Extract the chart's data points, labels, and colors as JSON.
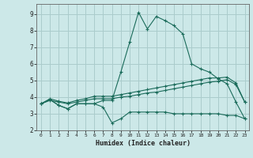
{
  "bg_color": "#cce8e8",
  "grid_color": "#aacccc",
  "line_color": "#1a6b5a",
  "xlabel": "Humidex (Indice chaleur)",
  "xlim": [
    -0.5,
    23.5
  ],
  "ylim": [
    2.0,
    9.6
  ],
  "xticks": [
    0,
    1,
    2,
    3,
    4,
    5,
    6,
    7,
    8,
    9,
    10,
    11,
    12,
    13,
    14,
    15,
    16,
    17,
    18,
    19,
    20,
    21,
    22,
    23
  ],
  "yticks": [
    2,
    3,
    4,
    5,
    6,
    7,
    8,
    9
  ],
  "line1_x": [
    0,
    1,
    2,
    3,
    4,
    5,
    6,
    7,
    8,
    9,
    10,
    11,
    12,
    13,
    14,
    15,
    16,
    17,
    18,
    19,
    20,
    21,
    22,
    23
  ],
  "line1_y": [
    3.6,
    3.85,
    3.5,
    3.3,
    3.6,
    3.6,
    3.6,
    3.8,
    3.8,
    5.5,
    7.3,
    9.1,
    8.1,
    8.85,
    8.6,
    8.3,
    7.8,
    6.0,
    5.7,
    5.5,
    5.1,
    4.8,
    3.7,
    2.7
  ],
  "line2_x": [
    0,
    1,
    2,
    3,
    4,
    5,
    6,
    7,
    8,
    9,
    10,
    11,
    12,
    13,
    14,
    15,
    16,
    17,
    18,
    19,
    20,
    21,
    22,
    23
  ],
  "line2_y": [
    3.6,
    3.85,
    3.5,
    3.3,
    3.6,
    3.6,
    3.6,
    3.4,
    2.45,
    2.7,
    3.1,
    3.1,
    3.1,
    3.1,
    3.1,
    3.0,
    3.0,
    3.0,
    3.0,
    3.0,
    3.0,
    2.9,
    2.9,
    2.7
  ],
  "line3_x": [
    0,
    1,
    2,
    3,
    4,
    5,
    6,
    7,
    8,
    9,
    10,
    11,
    12,
    13,
    14,
    15,
    16,
    17,
    18,
    19,
    20,
    21,
    22,
    23
  ],
  "line3_y": [
    3.6,
    3.9,
    3.75,
    3.65,
    3.8,
    3.9,
    4.05,
    4.05,
    4.05,
    4.15,
    4.25,
    4.35,
    4.45,
    4.55,
    4.65,
    4.75,
    4.85,
    4.95,
    5.05,
    5.15,
    5.15,
    5.2,
    4.85,
    3.7
  ],
  "line4_x": [
    0,
    1,
    2,
    3,
    4,
    5,
    6,
    7,
    8,
    9,
    10,
    11,
    12,
    13,
    14,
    15,
    16,
    17,
    18,
    19,
    20,
    21,
    22,
    23
  ],
  "line4_y": [
    3.6,
    3.8,
    3.7,
    3.6,
    3.7,
    3.8,
    3.9,
    3.9,
    3.9,
    4.0,
    4.05,
    4.15,
    4.25,
    4.3,
    4.4,
    4.5,
    4.6,
    4.7,
    4.8,
    4.9,
    4.95,
    5.05,
    4.75,
    3.7
  ]
}
